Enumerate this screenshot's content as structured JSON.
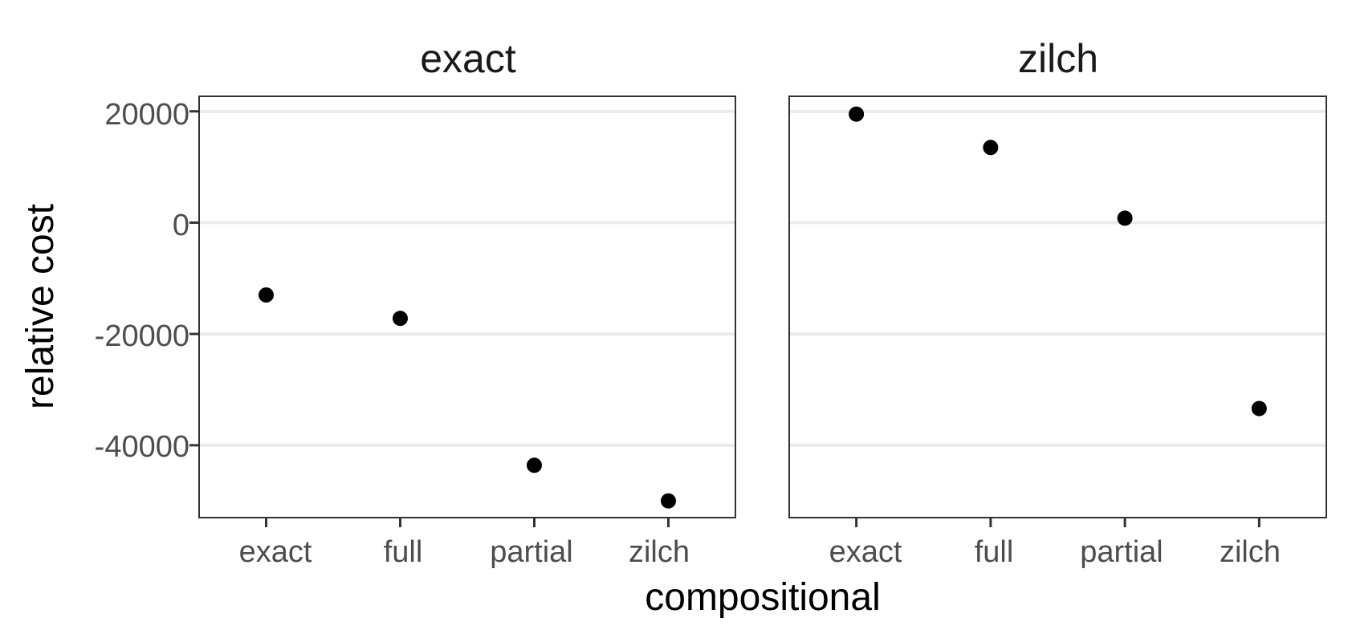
{
  "chart_data": {
    "type": "scatter",
    "xlabel": "compositional",
    "ylabel": "relative cost",
    "categories": [
      "exact",
      "full",
      "partial",
      "zilch"
    ],
    "ylim": [
      -53000,
      22700
    ],
    "y_ticks": [
      20000,
      0,
      -20000,
      -40000
    ],
    "y_tick_labels": [
      "20000",
      "0",
      "-20000",
      "-40000"
    ],
    "grid": true,
    "panels": [
      {
        "title": "exact",
        "values": [
          -13000,
          -17200,
          -43600,
          -50000
        ]
      },
      {
        "title": "zilch",
        "values": [
          19500,
          13500,
          800,
          -33400
        ]
      }
    ]
  }
}
